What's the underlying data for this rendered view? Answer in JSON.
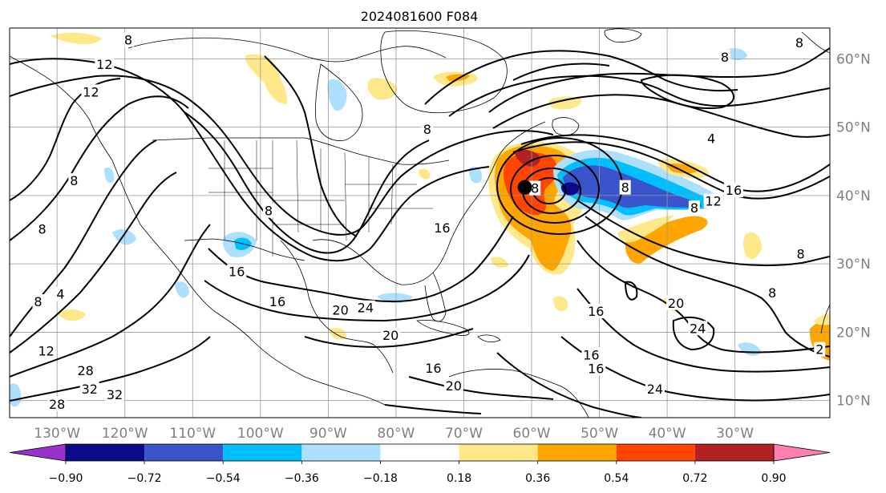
{
  "map": {
    "title": "2024081600 F084",
    "projection": "equirectangular",
    "grid": true,
    "extent": {
      "lon": [
        -137,
        -16
      ],
      "lat": [
        7.5,
        64.5
      ]
    },
    "lon_ticks": [
      -130,
      -120,
      -110,
      -100,
      -90,
      -80,
      -70,
      -60,
      -50,
      -40,
      -30
    ],
    "lon_tick_labels": [
      "130°W",
      "120°W",
      "110°W",
      "100°W",
      "90°W",
      "80°W",
      "70°W",
      "60°W",
      "50°W",
      "40°W",
      "30°W"
    ],
    "lat_ticks": [
      10,
      20,
      30,
      40,
      50,
      60
    ],
    "lat_tick_labels": [
      "10°N",
      "20°N",
      "30°N",
      "40°N",
      "50°N",
      "60°N"
    ],
    "contour_labels": [
      {
        "text": "12",
        "lon": -123,
        "lat": 59.2
      },
      {
        "text": "12",
        "lon": -125,
        "lat": 55.2
      },
      {
        "text": "8",
        "lon": -119.5,
        "lat": 62.8
      },
      {
        "text": "8",
        "lon": -127.5,
        "lat": 42.2
      },
      {
        "text": "8",
        "lon": -132.2,
        "lat": 35.1
      },
      {
        "text": "8",
        "lon": -132.8,
        "lat": 24.5
      },
      {
        "text": "4",
        "lon": -129.5,
        "lat": 25.6
      },
      {
        "text": "12",
        "lon": -131.6,
        "lat": 17.3
      },
      {
        "text": "28",
        "lon": -125.8,
        "lat": 14.4
      },
      {
        "text": "32",
        "lon": -125.2,
        "lat": 11.7
      },
      {
        "text": "28",
        "lon": -130,
        "lat": 9.5
      },
      {
        "text": "32",
        "lon": -121.5,
        "lat": 10.9
      },
      {
        "text": "16",
        "lon": -103.5,
        "lat": 28.9
      },
      {
        "text": "16",
        "lon": -97.5,
        "lat": 24.5
      },
      {
        "text": "8",
        "lon": -98.8,
        "lat": 37.8
      },
      {
        "text": "8",
        "lon": -75.4,
        "lat": 49.7
      },
      {
        "text": "20",
        "lon": -88.2,
        "lat": 23.3
      },
      {
        "text": "24",
        "lon": -84.5,
        "lat": 23.6
      },
      {
        "text": "20",
        "lon": -80.8,
        "lat": 19.6
      },
      {
        "text": "16",
        "lon": -73.2,
        "lat": 35.3
      },
      {
        "text": "16",
        "lon": -74.5,
        "lat": 14.8
      },
      {
        "text": "20",
        "lon": -71.5,
        "lat": 12.2
      },
      {
        "text": "8",
        "lon": -59.5,
        "lat": 41.1
      },
      {
        "text": "8",
        "lon": -46.2,
        "lat": 41.2
      },
      {
        "text": "16",
        "lon": -50.5,
        "lat": 23.1
      },
      {
        "text": "16",
        "lon": -51.2,
        "lat": 16.7
      },
      {
        "text": "16",
        "lon": -50.5,
        "lat": 14.7
      },
      {
        "text": "24",
        "lon": -41.8,
        "lat": 11.7
      },
      {
        "text": "20",
        "lon": -38.7,
        "lat": 24.3
      },
      {
        "text": "24",
        "lon": -35.5,
        "lat": 20.6
      },
      {
        "text": "16",
        "lon": -30.2,
        "lat": 40.8
      },
      {
        "text": "12",
        "lon": -33.2,
        "lat": 39.2
      },
      {
        "text": "8",
        "lon": -36,
        "lat": 38.2
      },
      {
        "text": "8",
        "lon": -20.3,
        "lat": 31.5
      },
      {
        "text": "8",
        "lon": -24.5,
        "lat": 25.8
      },
      {
        "text": "8",
        "lon": -20.5,
        "lat": 62.4
      },
      {
        "text": "8",
        "lon": -31.5,
        "lat": 60.3
      },
      {
        "text": "4",
        "lon": -33.5,
        "lat": 48.4
      },
      {
        "text": "2",
        "lon": -17.5,
        "lat": 17.5
      }
    ],
    "low_center": {
      "lon": -61,
      "lat": 41.2
    }
  },
  "colorbar": {
    "tick_values": [
      -0.9,
      -0.72,
      -0.54,
      -0.36,
      -0.18,
      0.18,
      0.36,
      0.54,
      0.72,
      0.9
    ],
    "tick_labels": [
      "−0.90",
      "−0.72",
      "−0.54",
      "−0.36",
      "−0.18",
      "0.18",
      "0.36",
      "0.54",
      "0.72",
      "0.90"
    ],
    "colors": {
      "under": "#9932CC",
      "bins": [
        "#0B0B8A",
        "#3A55CC",
        "#00BFFF",
        "#ADDFFF",
        "#FFFFFF",
        "#FFE88A",
        "#FFA500",
        "#FF4500",
        "#B22222"
      ],
      "over": "#FF80B0"
    }
  }
}
